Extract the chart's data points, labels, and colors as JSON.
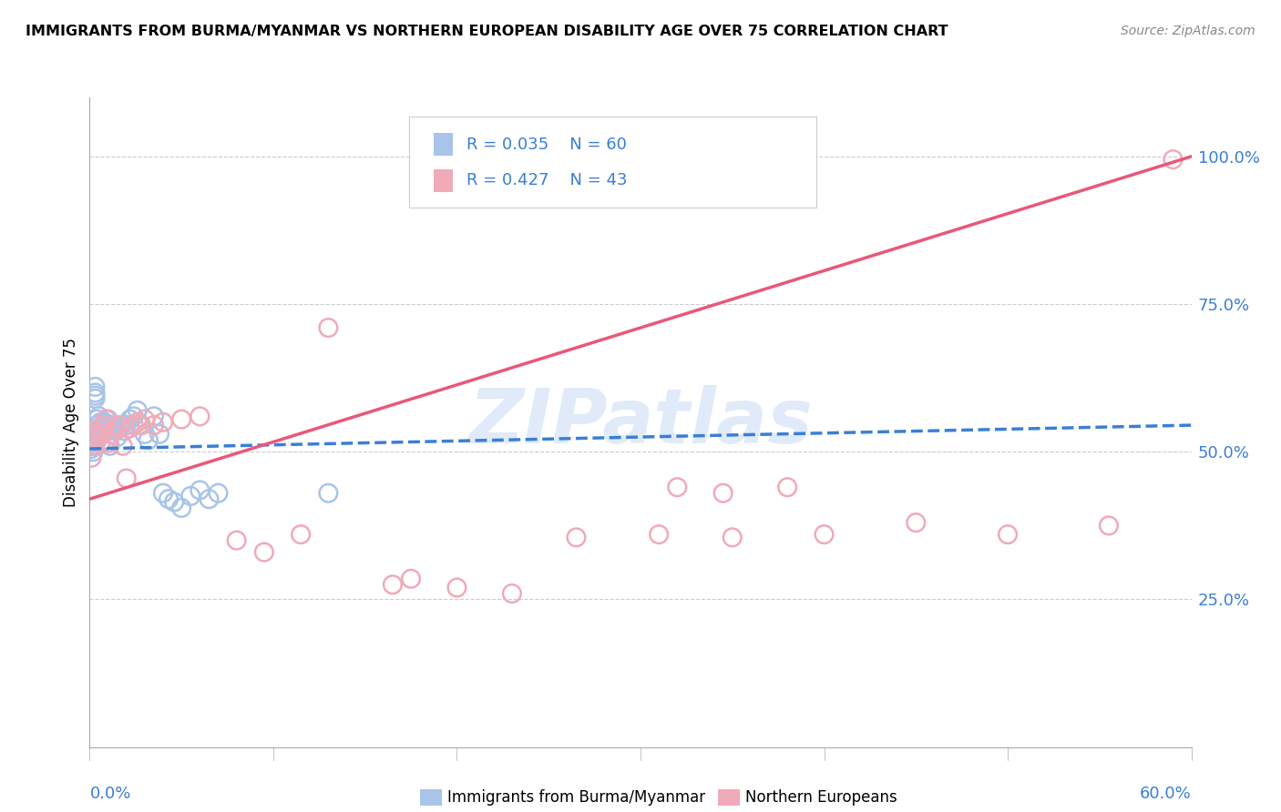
{
  "title": "IMMIGRANTS FROM BURMA/MYANMAR VS NORTHERN EUROPEAN DISABILITY AGE OVER 75 CORRELATION CHART",
  "source": "Source: ZipAtlas.com",
  "ylabel": "Disability Age Over 75",
  "right_yticklabels": [
    "25.0%",
    "50.0%",
    "75.0%",
    "100.0%"
  ],
  "right_ytick_vals": [
    0.25,
    0.5,
    0.75,
    1.0
  ],
  "blue_color": "#a8c4e8",
  "pink_color": "#f0aab8",
  "blue_line_color": "#3a7fd5",
  "pink_line_color": "#e85878",
  "watermark_color": "#ccddf5",
  "blue_R": 0.035,
  "blue_N": 60,
  "pink_R": 0.427,
  "pink_N": 43,
  "blue_scatter_x": [
    0.001,
    0.001,
    0.001,
    0.002,
    0.002,
    0.002,
    0.002,
    0.002,
    0.003,
    0.003,
    0.003,
    0.003,
    0.003,
    0.004,
    0.004,
    0.004,
    0.004,
    0.005,
    0.005,
    0.005,
    0.005,
    0.006,
    0.006,
    0.006,
    0.007,
    0.007,
    0.007,
    0.008,
    0.008,
    0.009,
    0.009,
    0.01,
    0.01,
    0.011,
    0.011,
    0.012,
    0.013,
    0.014,
    0.015,
    0.016,
    0.018,
    0.019,
    0.02,
    0.022,
    0.024,
    0.026,
    0.028,
    0.03,
    0.032,
    0.035,
    0.038,
    0.04,
    0.043,
    0.046,
    0.05,
    0.055,
    0.06,
    0.065,
    0.07,
    0.13
  ],
  "blue_scatter_y": [
    0.51,
    0.515,
    0.505,
    0.52,
    0.525,
    0.515,
    0.5,
    0.51,
    0.53,
    0.595,
    0.6,
    0.59,
    0.61,
    0.52,
    0.545,
    0.555,
    0.53,
    0.525,
    0.54,
    0.535,
    0.56,
    0.54,
    0.55,
    0.515,
    0.53,
    0.545,
    0.545,
    0.535,
    0.55,
    0.54,
    0.52,
    0.555,
    0.545,
    0.51,
    0.545,
    0.545,
    0.54,
    0.535,
    0.525,
    0.54,
    0.545,
    0.535,
    0.545,
    0.555,
    0.56,
    0.57,
    0.545,
    0.53,
    0.52,
    0.56,
    0.53,
    0.43,
    0.42,
    0.415,
    0.405,
    0.425,
    0.435,
    0.42,
    0.43,
    0.43
  ],
  "pink_scatter_x": [
    0.001,
    0.002,
    0.003,
    0.004,
    0.005,
    0.006,
    0.007,
    0.008,
    0.009,
    0.01,
    0.012,
    0.014,
    0.016,
    0.018,
    0.02,
    0.022,
    0.024,
    0.026,
    0.028,
    0.03,
    0.035,
    0.04,
    0.05,
    0.06,
    0.08,
    0.095,
    0.115,
    0.13,
    0.165,
    0.175,
    0.2,
    0.23,
    0.265,
    0.31,
    0.35,
    0.38,
    0.45,
    0.5,
    0.555,
    0.59,
    0.32,
    0.345,
    0.4
  ],
  "pink_scatter_y": [
    0.49,
    0.53,
    0.51,
    0.525,
    0.54,
    0.515,
    0.53,
    0.545,
    0.555,
    0.515,
    0.53,
    0.54,
    0.545,
    0.51,
    0.455,
    0.54,
    0.545,
    0.55,
    0.545,
    0.555,
    0.545,
    0.55,
    0.555,
    0.56,
    0.35,
    0.33,
    0.36,
    0.71,
    0.275,
    0.285,
    0.27,
    0.26,
    0.355,
    0.36,
    0.355,
    0.44,
    0.38,
    0.36,
    0.375,
    0.995,
    0.44,
    0.43,
    0.36
  ],
  "blue_trend_x": [
    0.0,
    0.6
  ],
  "blue_trend_y": [
    0.505,
    0.545
  ],
  "pink_trend_x": [
    0.0,
    0.6
  ],
  "pink_trend_y": [
    0.42,
    1.0
  ],
  "xmin": 0.0,
  "xmax": 0.6,
  "ymin": 0.0,
  "ymax": 1.1
}
